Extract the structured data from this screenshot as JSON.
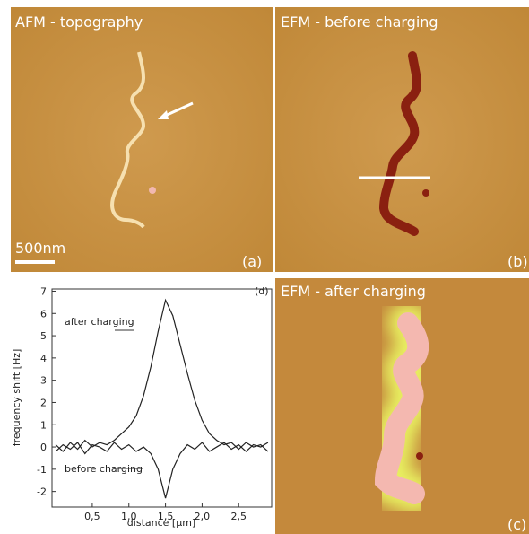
{
  "panels": {
    "a": {
      "title": "AFM - topography",
      "tag": "(a)",
      "scale": "500nm"
    },
    "b": {
      "title": "EFM - before charging",
      "tag": "(b)"
    },
    "c": {
      "title": "EFM - after charging",
      "tag": "(c)"
    }
  },
  "chart_data": {
    "type": "line",
    "tag": "(d)",
    "x_label": "distance [µm]",
    "y_label": "frequency shift [Hz]",
    "annotations": [
      "after charging",
      "before charging"
    ],
    "x": [
      0,
      0.1,
      0.2,
      0.3,
      0.4,
      0.5,
      0.6,
      0.7,
      0.8,
      0.9,
      1.0,
      1.1,
      1.2,
      1.3,
      1.4,
      1.5,
      1.6,
      1.7,
      1.8,
      1.9,
      2.0,
      2.1,
      2.2,
      2.3,
      2.4,
      2.5,
      2.6,
      2.7,
      2.8,
      2.9
    ],
    "series": [
      {
        "color": "#222222",
        "values": [
          0.1,
          -0.2,
          0.2,
          -0.1,
          0.3,
          0,
          0.2,
          0.1,
          0.3,
          0.6,
          0.9,
          1.4,
          2.3,
          3.6,
          5.2,
          6.6,
          5.9,
          4.6,
          3.3,
          2.1,
          1.2,
          0.6,
          0.3,
          0.1,
          0.2,
          -0.1,
          0.2,
          0,
          0.1,
          -0.2
        ]
      },
      {
        "color": "#222222",
        "values": [
          -0.2,
          0.1,
          -0.1,
          0.2,
          -0.3,
          0.1,
          0,
          -0.2,
          0.2,
          -0.1,
          0.1,
          -0.2,
          0,
          -0.3,
          -1.0,
          -2.3,
          -1.0,
          -0.3,
          0.1,
          -0.1,
          0.2,
          -0.2,
          0,
          0.2,
          -0.1,
          0.1,
          -0.2,
          0.1,
          0,
          0.2
        ]
      }
    ],
    "xlim": [
      -0.05,
      2.95
    ],
    "ylim": [
      -2.7,
      7.1
    ],
    "xticks": [
      {
        "value": 0.5,
        "label": "0,5"
      },
      {
        "value": 1.0,
        "label": "1,0"
      },
      {
        "value": 1.5,
        "label": "1,5"
      },
      {
        "value": 2.0,
        "label": "2,0"
      },
      {
        "value": 2.5,
        "label": "2,5"
      }
    ],
    "yticks": [
      -2,
      -1,
      0,
      1,
      2,
      3,
      4,
      5,
      6,
      7
    ]
  }
}
